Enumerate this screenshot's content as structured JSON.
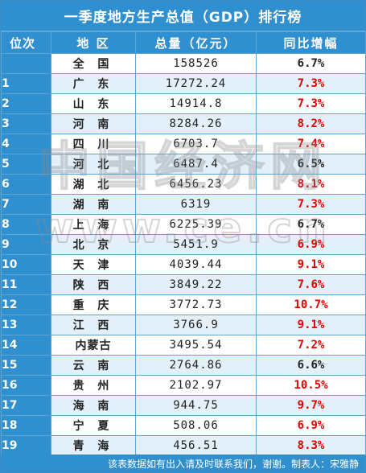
{
  "title": "一季度地方生产总值（GDP）排行榜",
  "headers": {
    "rank": "位次",
    "region": "地 区",
    "total": "总量（亿元）",
    "growth": "同比增幅"
  },
  "colors": {
    "header_blue": "#2f8fcf",
    "stripe": "#e3f0fa",
    "growth_red": "#e60000",
    "growth_black": "#222222"
  },
  "rows": [
    {
      "rank": "",
      "region": "全 国",
      "total": "158526",
      "growth": "6.7%",
      "growth_color": "#222222"
    },
    {
      "rank": "1",
      "region": "广 东",
      "total": "17272.24",
      "growth": "7.3%",
      "growth_color": "#e60000"
    },
    {
      "rank": "2",
      "region": "山 东",
      "total": "14914.8",
      "growth": "7.3%",
      "growth_color": "#e60000"
    },
    {
      "rank": "3",
      "region": "河 南",
      "total": "8284.26",
      "growth": "8.2%",
      "growth_color": "#e60000"
    },
    {
      "rank": "4",
      "region": "四 川",
      "total": "6703.7",
      "growth": "7.4%",
      "growth_color": "#e60000"
    },
    {
      "rank": "5",
      "region": "河 北",
      "total": "6487.4",
      "growth": "6.5%",
      "growth_color": "#222222"
    },
    {
      "rank": "6",
      "region": "湖 北",
      "total": "6456.23",
      "growth": "8.1%",
      "growth_color": "#e60000"
    },
    {
      "rank": "7",
      "region": "湖 南",
      "total": "6319",
      "growth": "7.3%",
      "growth_color": "#e60000"
    },
    {
      "rank": "8",
      "region": "上 海",
      "total": "6225.39",
      "growth": "6.7%",
      "growth_color": "#222222"
    },
    {
      "rank": "9",
      "region": "北 京",
      "total": "5451.9",
      "growth": "6.9%",
      "growth_color": "#e60000"
    },
    {
      "rank": "10",
      "region": "天 津",
      "total": "4039.44",
      "growth": "9.1%",
      "growth_color": "#e60000"
    },
    {
      "rank": "11",
      "region": "陕 西",
      "total": "3849.22",
      "growth": "7.6%",
      "growth_color": "#e60000"
    },
    {
      "rank": "12",
      "region": "重 庆",
      "total": "3772.73",
      "growth": "10.7%",
      "growth_color": "#e60000"
    },
    {
      "rank": "13",
      "region": "江 西",
      "total": "3766.9",
      "growth": "9.1%",
      "growth_color": "#e60000"
    },
    {
      "rank": "14",
      "region": "内蒙古",
      "total": "3495.54",
      "growth": "7.2%",
      "growth_color": "#e60000"
    },
    {
      "rank": "15",
      "region": "云 南",
      "total": "2764.86",
      "growth": "6.6%",
      "growth_color": "#222222"
    },
    {
      "rank": "16",
      "region": "贵 州",
      "total": "2102.97",
      "growth": "10.5%",
      "growth_color": "#e60000"
    },
    {
      "rank": "17",
      "region": "海 南",
      "total": "944.75",
      "growth": "9.7%",
      "growth_color": "#e60000"
    },
    {
      "rank": "18",
      "region": "宁 夏",
      "total": "508.06",
      "growth": "6.9%",
      "growth_color": "#e60000"
    },
    {
      "rank": "19",
      "region": "青 海",
      "total": "456.51",
      "growth": "8.3%",
      "growth_color": "#e60000"
    }
  ],
  "watermark": {
    "text": "中国经济网",
    "url_text": "www.ce.cn"
  },
  "footer": "该表数据如有出入请及时联系我们，谢谢。制表人：宋雅静"
}
